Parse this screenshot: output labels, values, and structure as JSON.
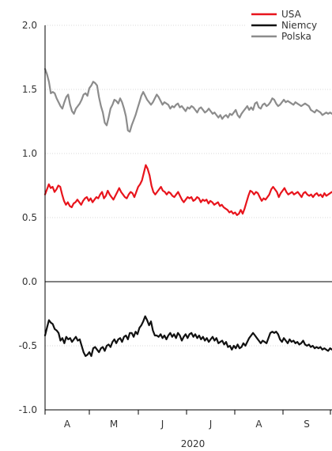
{
  "chart_data": {
    "type": "line",
    "title": "",
    "xlabel": "2020",
    "ylabel": "",
    "x_tick_labels": [
      "A",
      "M",
      "J",
      "J",
      "A",
      "S"
    ],
    "ylim": [
      -1.0,
      2.0
    ],
    "y_ticks": [
      -1.0,
      -0.5,
      0.0,
      0.5,
      1.0,
      1.5,
      2.0
    ],
    "y_tick_labels": [
      "-1.0",
      "-0.5",
      "0.0",
      "0.5",
      "1.0",
      "1.5",
      "2.0"
    ],
    "grid": true,
    "legend_position": "top-right",
    "series": [
      {
        "name": "USA",
        "color": "#e8141c",
        "values": [
          0.68,
          0.72,
          0.76,
          0.73,
          0.74,
          0.7,
          0.72,
          0.75,
          0.74,
          0.68,
          0.63,
          0.6,
          0.62,
          0.59,
          0.58,
          0.61,
          0.62,
          0.64,
          0.62,
          0.6,
          0.63,
          0.65,
          0.66,
          0.63,
          0.65,
          0.62,
          0.64,
          0.66,
          0.65,
          0.68,
          0.7,
          0.65,
          0.67,
          0.71,
          0.68,
          0.66,
          0.64,
          0.67,
          0.7,
          0.73,
          0.7,
          0.68,
          0.66,
          0.65,
          0.68,
          0.7,
          0.69,
          0.66,
          0.7,
          0.74,
          0.76,
          0.79,
          0.85,
          0.91,
          0.88,
          0.83,
          0.75,
          0.7,
          0.68,
          0.7,
          0.72,
          0.74,
          0.71,
          0.7,
          0.68,
          0.7,
          0.69,
          0.67,
          0.66,
          0.68,
          0.7,
          0.67,
          0.64,
          0.62,
          0.64,
          0.66,
          0.65,
          0.66,
          0.63,
          0.64,
          0.66,
          0.65,
          0.62,
          0.64,
          0.63,
          0.64,
          0.61,
          0.63,
          0.62,
          0.6,
          0.61,
          0.62,
          0.59,
          0.6,
          0.58,
          0.57,
          0.56,
          0.54,
          0.55,
          0.53,
          0.54,
          0.52,
          0.53,
          0.56,
          0.53,
          0.57,
          0.62,
          0.67,
          0.71,
          0.7,
          0.68,
          0.7,
          0.69,
          0.66,
          0.63,
          0.65,
          0.64,
          0.66,
          0.68,
          0.72,
          0.74,
          0.72,
          0.7,
          0.66,
          0.69,
          0.71,
          0.73,
          0.7,
          0.68,
          0.69,
          0.7,
          0.68,
          0.69,
          0.7,
          0.68,
          0.66,
          0.69,
          0.7,
          0.68,
          0.67,
          0.68,
          0.66,
          0.68,
          0.69,
          0.67,
          0.68,
          0.66,
          0.69,
          0.67,
          0.68,
          0.69,
          0.7
        ]
      },
      {
        "name": "Niemcy",
        "color": "#111111",
        "values": [
          -0.42,
          -0.36,
          -0.3,
          -0.32,
          -0.33,
          -0.37,
          -0.38,
          -0.4,
          -0.46,
          -0.44,
          -0.48,
          -0.43,
          -0.45,
          -0.44,
          -0.47,
          -0.45,
          -0.43,
          -0.46,
          -0.45,
          -0.5,
          -0.55,
          -0.58,
          -0.57,
          -0.55,
          -0.58,
          -0.52,
          -0.51,
          -0.53,
          -0.55,
          -0.52,
          -0.51,
          -0.54,
          -0.5,
          -0.49,
          -0.51,
          -0.47,
          -0.45,
          -0.48,
          -0.45,
          -0.44,
          -0.47,
          -0.43,
          -0.42,
          -0.45,
          -0.4,
          -0.4,
          -0.43,
          -0.39,
          -0.41,
          -0.36,
          -0.34,
          -0.31,
          -0.27,
          -0.3,
          -0.34,
          -0.31,
          -0.38,
          -0.42,
          -0.42,
          -0.43,
          -0.41,
          -0.44,
          -0.42,
          -0.45,
          -0.42,
          -0.4,
          -0.43,
          -0.41,
          -0.44,
          -0.4,
          -0.42,
          -0.46,
          -0.43,
          -0.41,
          -0.44,
          -0.41,
          -0.4,
          -0.43,
          -0.41,
          -0.44,
          -0.42,
          -0.45,
          -0.43,
          -0.46,
          -0.44,
          -0.47,
          -0.45,
          -0.43,
          -0.46,
          -0.44,
          -0.48,
          -0.47,
          -0.46,
          -0.49,
          -0.47,
          -0.51,
          -0.5,
          -0.53,
          -0.5,
          -0.52,
          -0.49,
          -0.52,
          -0.51,
          -0.48,
          -0.5,
          -0.47,
          -0.44,
          -0.42,
          -0.4,
          -0.42,
          -0.44,
          -0.46,
          -0.48,
          -0.46,
          -0.47,
          -0.48,
          -0.44,
          -0.4,
          -0.39,
          -0.4,
          -0.39,
          -0.41,
          -0.45,
          -0.47,
          -0.44,
          -0.46,
          -0.48,
          -0.45,
          -0.47,
          -0.46,
          -0.48,
          -0.47,
          -0.49,
          -0.48,
          -0.46,
          -0.49,
          -0.5,
          -0.49,
          -0.51,
          -0.5,
          -0.52,
          -0.51,
          -0.52,
          -0.51,
          -0.53,
          -0.52,
          -0.53,
          -0.54,
          -0.52,
          -0.53
        ]
      },
      {
        "name": "Polska",
        "color": "#8c8c8c",
        "values": [
          1.66,
          1.62,
          1.56,
          1.47,
          1.48,
          1.47,
          1.43,
          1.4,
          1.37,
          1.35,
          1.4,
          1.44,
          1.46,
          1.38,
          1.33,
          1.31,
          1.35,
          1.37,
          1.39,
          1.42,
          1.46,
          1.47,
          1.45,
          1.51,
          1.53,
          1.56,
          1.55,
          1.53,
          1.44,
          1.37,
          1.32,
          1.24,
          1.22,
          1.28,
          1.35,
          1.38,
          1.42,
          1.41,
          1.39,
          1.43,
          1.4,
          1.35,
          1.29,
          1.18,
          1.17,
          1.22,
          1.26,
          1.3,
          1.35,
          1.4,
          1.45,
          1.48,
          1.45,
          1.42,
          1.4,
          1.38,
          1.4,
          1.43,
          1.46,
          1.44,
          1.41,
          1.38,
          1.4,
          1.39,
          1.38,
          1.35,
          1.37,
          1.36,
          1.38,
          1.39,
          1.36,
          1.37,
          1.35,
          1.33,
          1.36,
          1.35,
          1.37,
          1.36,
          1.34,
          1.32,
          1.35,
          1.36,
          1.34,
          1.32,
          1.33,
          1.35,
          1.33,
          1.31,
          1.32,
          1.3,
          1.28,
          1.3,
          1.27,
          1.29,
          1.3,
          1.28,
          1.31,
          1.3,
          1.32,
          1.34,
          1.3,
          1.28,
          1.31,
          1.33,
          1.35,
          1.37,
          1.34,
          1.36,
          1.34,
          1.39,
          1.4,
          1.36,
          1.35,
          1.38,
          1.39,
          1.37,
          1.38,
          1.4,
          1.43,
          1.42,
          1.39,
          1.37,
          1.38,
          1.4,
          1.42,
          1.4,
          1.41,
          1.4,
          1.39,
          1.38,
          1.4,
          1.39,
          1.38,
          1.37,
          1.38,
          1.39,
          1.38,
          1.37,
          1.34,
          1.33,
          1.32,
          1.34,
          1.33,
          1.32,
          1.3,
          1.31,
          1.32,
          1.31,
          1.32,
          1.31
        ]
      }
    ]
  }
}
